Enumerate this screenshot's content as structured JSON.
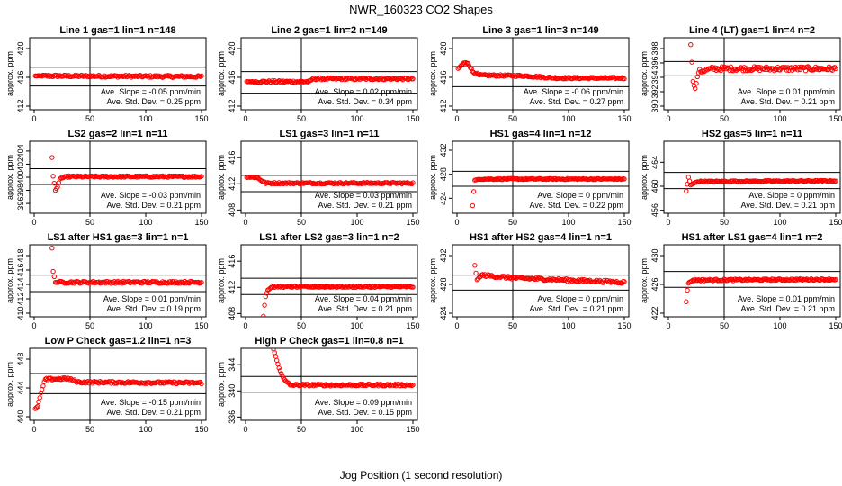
{
  "title": "NWR_160323  CO2 Shapes",
  "xlabel": "Jog Position (1 second resolution)",
  "ylabel": "approx. ppm",
  "colors": {
    "points": "#ff0000",
    "axes": "#000000"
  },
  "chart_data": [
    {
      "type": "scatter",
      "title": "Line 1 gas=1 lin=1 n=148",
      "xlim": [
        0,
        150
      ],
      "xticks": [
        0,
        50,
        100,
        150
      ],
      "ylim": [
        411.5,
        421.5
      ],
      "yticks": [
        412,
        416,
        420
      ],
      "hlines": [
        417.4,
        414.8
      ],
      "vline": 50,
      "slope": "Ave. Slope = -0.05  ppm/min",
      "std": "Ave. Std. Dev. = 0.25  ppm",
      "series": {
        "x_start": 1,
        "x_end": 150,
        "segments": [
          [
            1,
            416.2
          ],
          [
            150,
            416.1
          ]
        ],
        "noise": 0.15
      }
    },
    {
      "type": "scatter",
      "title": "Line 2 gas=1 lin=2 n=149",
      "xlim": [
        0,
        150
      ],
      "xticks": [
        0,
        50,
        100,
        150
      ],
      "ylim": [
        411.5,
        421.5
      ],
      "yticks": [
        412,
        416,
        420
      ],
      "hlines": [
        416.8,
        413.8
      ],
      "vline": 50,
      "slope": "Ave. Slope = 0.02  ppm/min",
      "std": "Ave. Std. Dev. = 0.34  ppm",
      "series": {
        "x_start": 1,
        "x_end": 150,
        "segments": [
          [
            1,
            415.4
          ],
          [
            58,
            415.4
          ],
          [
            60,
            415.8
          ],
          [
            150,
            415.8
          ]
        ],
        "noise": 0.15
      }
    },
    {
      "type": "scatter",
      "title": "Line 3 gas=1 lin=3 n=149",
      "xlim": [
        0,
        150
      ],
      "xticks": [
        0,
        50,
        100,
        150
      ],
      "ylim": [
        411.5,
        421.5
      ],
      "yticks": [
        412,
        416,
        420
      ],
      "hlines": [
        417.5,
        414.7
      ],
      "vline": 50,
      "slope": "Ave. Slope = -0.06  ppm/min",
      "std": "Ave. Std. Dev. = 0.27  ppm",
      "series": {
        "x_start": 1,
        "x_end": 150,
        "segments": [
          [
            1,
            417.2
          ],
          [
            6,
            418.0
          ],
          [
            10,
            418.0
          ],
          [
            14,
            416.8
          ],
          [
            20,
            416.3
          ],
          [
            60,
            416.2
          ],
          [
            90,
            415.9
          ],
          [
            150,
            415.9
          ]
        ],
        "noise": 0.12
      }
    },
    {
      "type": "scatter",
      "title": "Line 4 (LT) gas=1 lin=4 n=2",
      "xlim": [
        0,
        150
      ],
      "xticks": [
        0,
        50,
        100,
        150
      ],
      "ylim": [
        389.5,
        399.5
      ],
      "yticks": [
        390,
        392,
        394,
        396,
        398
      ],
      "hlines": [
        396.2,
        394.2
      ],
      "vline": 50,
      "slope": "Ave. Slope = 0.01  ppm/min",
      "std": "Ave. Std. Dev. = 0.21  ppm",
      "series": {
        "x_start": 20,
        "x_end": 150,
        "segments": [
          [
            20,
            398.6
          ],
          [
            22,
            393.5
          ],
          [
            24,
            392.4
          ],
          [
            27,
            394.8
          ],
          [
            40,
            395.2
          ],
          [
            150,
            395.2
          ]
        ],
        "noise": 0.3
      }
    },
    {
      "type": "scatter",
      "title": "LS2 gas=2 lin=1 n=11",
      "xlim": [
        0,
        150
      ],
      "xticks": [
        0,
        50,
        100,
        150
      ],
      "ylim": [
        394.5,
        405.5
      ],
      "yticks": [
        396,
        398,
        400,
        402,
        404
      ],
      "hlines": [
        401.3,
        398.9
      ],
      "vline": 50,
      "slope": "Ave. Slope = -0.03  ppm/min",
      "std": "Ave. Std. Dev. = 0.21  ppm",
      "series": {
        "x_start": 16,
        "x_end": 150,
        "segments": [
          [
            16,
            403.0
          ],
          [
            17,
            400.2
          ],
          [
            19,
            398.0
          ],
          [
            21,
            398.5
          ],
          [
            23,
            399.8
          ],
          [
            30,
            400.1
          ],
          [
            150,
            400.1
          ]
        ],
        "noise": 0.12
      }
    },
    {
      "type": "scatter",
      "title": "LS1 gas=3 lin=1 n=11",
      "xlim": [
        0,
        150
      ],
      "xticks": [
        0,
        50,
        100,
        150
      ],
      "ylim": [
        407.5,
        418.5
      ],
      "yticks": [
        408,
        412,
        416
      ],
      "hlines": [
        413.3,
        410.8
      ],
      "vline": 50,
      "slope": "Ave. Slope = 0.03  ppm/min",
      "std": "Ave. Std. Dev. = 0.21  ppm",
      "series": {
        "x_start": 1,
        "x_end": 150,
        "segments": [
          [
            1,
            413.0
          ],
          [
            10,
            413.0
          ],
          [
            18,
            412.1
          ],
          [
            150,
            412.1
          ]
        ],
        "noise": 0.12
      }
    },
    {
      "type": "scatter",
      "title": "HS1 gas=4 lin=1 n=12",
      "xlim": [
        0,
        150
      ],
      "xticks": [
        0,
        50,
        100,
        150
      ],
      "ylim": [
        421.5,
        433.5
      ],
      "yticks": [
        424,
        428,
        432
      ],
      "hlines": [
        428.5,
        426.0
      ],
      "vline": 50,
      "slope": "Ave. Slope = 0  ppm/min",
      "std": "Ave. Std. Dev. = 0.22  ppm",
      "series": {
        "x_start": 14,
        "x_end": 150,
        "segments": [
          [
            14,
            422.8
          ],
          [
            15,
            425.1
          ],
          [
            16,
            427.0
          ],
          [
            20,
            427.2
          ],
          [
            150,
            427.2
          ]
        ],
        "noise": 0.1
      }
    },
    {
      "type": "scatter",
      "title": "HS2 gas=5 lin=1 n=11",
      "xlim": [
        0,
        150
      ],
      "xticks": [
        0,
        50,
        100,
        150
      ],
      "ylim": [
        455.5,
        467.5
      ],
      "yticks": [
        456,
        460,
        464
      ],
      "hlines": [
        462.3,
        459.6
      ],
      "vline": 50,
      "slope": "Ave. Slope = 0  ppm/min",
      "std": "Ave. Std. Dev. = 0.21  ppm",
      "series": {
        "x_start": 16,
        "x_end": 150,
        "segments": [
          [
            16,
            459.2
          ],
          [
            18,
            461.5
          ],
          [
            20,
            460.2
          ],
          [
            26,
            460.8
          ],
          [
            150,
            460.9
          ]
        ],
        "noise": 0.1
      }
    },
    {
      "type": "scatter",
      "title": "LS1 after HS1 gas=3 lin=1 n=1",
      "xlim": [
        0,
        150
      ],
      "xticks": [
        0,
        50,
        100,
        150
      ],
      "ylim": [
        409.5,
        419.5
      ],
      "yticks": [
        410,
        412,
        414,
        416,
        418
      ],
      "hlines": [
        415.3,
        413.0
      ],
      "vline": 50,
      "slope": "Ave. Slope = 0.01  ppm/min",
      "std": "Ave. Std. Dev. = 0.19  ppm",
      "series": {
        "x_start": 16,
        "x_end": 150,
        "segments": [
          [
            16,
            419.0
          ],
          [
            17,
            415.8
          ],
          [
            19,
            414.3
          ],
          [
            150,
            414.3
          ]
        ],
        "noise": 0.15
      }
    },
    {
      "type": "scatter",
      "title": "LS1 after LS2 gas=3 lin=1 n=2",
      "xlim": [
        0,
        150
      ],
      "xticks": [
        0,
        50,
        100,
        150
      ],
      "ylim": [
        407.5,
        418.5
      ],
      "yticks": [
        408,
        412,
        416
      ],
      "hlines": [
        413.4,
        410.9
      ],
      "vline": 50,
      "slope": "Ave. Slope = 0.04  ppm/min",
      "std": "Ave. Std. Dev. = 0.21  ppm",
      "series": {
        "x_start": 16,
        "x_end": 150,
        "segments": [
          [
            16,
            407.6
          ],
          [
            17,
            409.3
          ],
          [
            18,
            410.6
          ],
          [
            20,
            411.6
          ],
          [
            24,
            412.1
          ],
          [
            150,
            412.1
          ]
        ],
        "noise": 0.12
      }
    },
    {
      "type": "scatter",
      "title": "HS1 after HS2 gas=4 lin=1 n=1",
      "xlim": [
        0,
        150
      ],
      "xticks": [
        0,
        50,
        100,
        150
      ],
      "ylim": [
        423.5,
        433.5
      ],
      "yticks": [
        424,
        428,
        432
      ],
      "hlines": [
        429.3,
        427.2
      ],
      "vline": 50,
      "slope": "Ave. Slope = 0  ppm/min",
      "std": "Ave. Std. Dev. = 0.21  ppm",
      "series": {
        "x_start": 16,
        "x_end": 150,
        "segments": [
          [
            16,
            430.6
          ],
          [
            18,
            428.6
          ],
          [
            22,
            429.3
          ],
          [
            50,
            428.9
          ],
          [
            150,
            428.3
          ]
        ],
        "noise": 0.18
      }
    },
    {
      "type": "scatter",
      "title": "HS1 after LS1 gas=4 lin=1 n=2",
      "xlim": [
        0,
        150
      ],
      "xticks": [
        0,
        50,
        100,
        150
      ],
      "ylim": [
        421.5,
        431.5
      ],
      "yticks": [
        422,
        426,
        430
      ],
      "hlines": [
        427.8,
        425.6
      ],
      "vline": 50,
      "slope": "Ave. Slope = 0.01  ppm/min",
      "std": "Ave. Std. Dev. = 0.21  ppm",
      "series": {
        "x_start": 16,
        "x_end": 150,
        "segments": [
          [
            16,
            423.6
          ],
          [
            17,
            425.2
          ],
          [
            18,
            426.2
          ],
          [
            22,
            426.6
          ],
          [
            150,
            426.7
          ]
        ],
        "noise": 0.12
      }
    },
    {
      "type": "scatter",
      "title": "Low P Check gas=1.2 lin=1 n=3",
      "xlim": [
        0,
        150
      ],
      "xticks": [
        0,
        50,
        100,
        150
      ],
      "ylim": [
        439.5,
        449.5
      ],
      "yticks": [
        440,
        444,
        448
      ],
      "hlines": [
        446.0,
        443.2
      ],
      "vline": 50,
      "slope": "Ave. Slope = -0.15  ppm/min",
      "std": "Ave. Std. Dev. = 0.21  ppm",
      "series": {
        "x_start": 1,
        "x_end": 150,
        "segments": [
          [
            1,
            441.1
          ],
          [
            3,
            441.4
          ],
          [
            6,
            443.3
          ],
          [
            10,
            445.2
          ],
          [
            30,
            445.3
          ],
          [
            40,
            444.8
          ],
          [
            150,
            444.7
          ]
        ],
        "noise": 0.15
      }
    },
    {
      "type": "scatter",
      "title": "High P Check gas=1 lin=0.8 n=1",
      "xlim": [
        0,
        150
      ],
      "xticks": [
        0,
        50,
        100,
        150
      ],
      "ylim": [
        335.5,
        346.5
      ],
      "yticks": [
        336,
        340,
        344
      ],
      "hlines": [
        342.2,
        339.8
      ],
      "vline": 50,
      "slope": "Ave. Slope = 0.09  ppm/min",
      "std": "Ave. Std. Dev. = 0.15  ppm",
      "series": {
        "x_start": 25,
        "x_end": 150,
        "segments": [
          [
            25,
            346.4
          ],
          [
            30,
            343.5
          ],
          [
            35,
            341.6
          ],
          [
            40,
            340.9
          ],
          [
            60,
            340.9
          ],
          [
            150,
            340.9
          ]
        ],
        "noise": 0.15
      }
    }
  ]
}
